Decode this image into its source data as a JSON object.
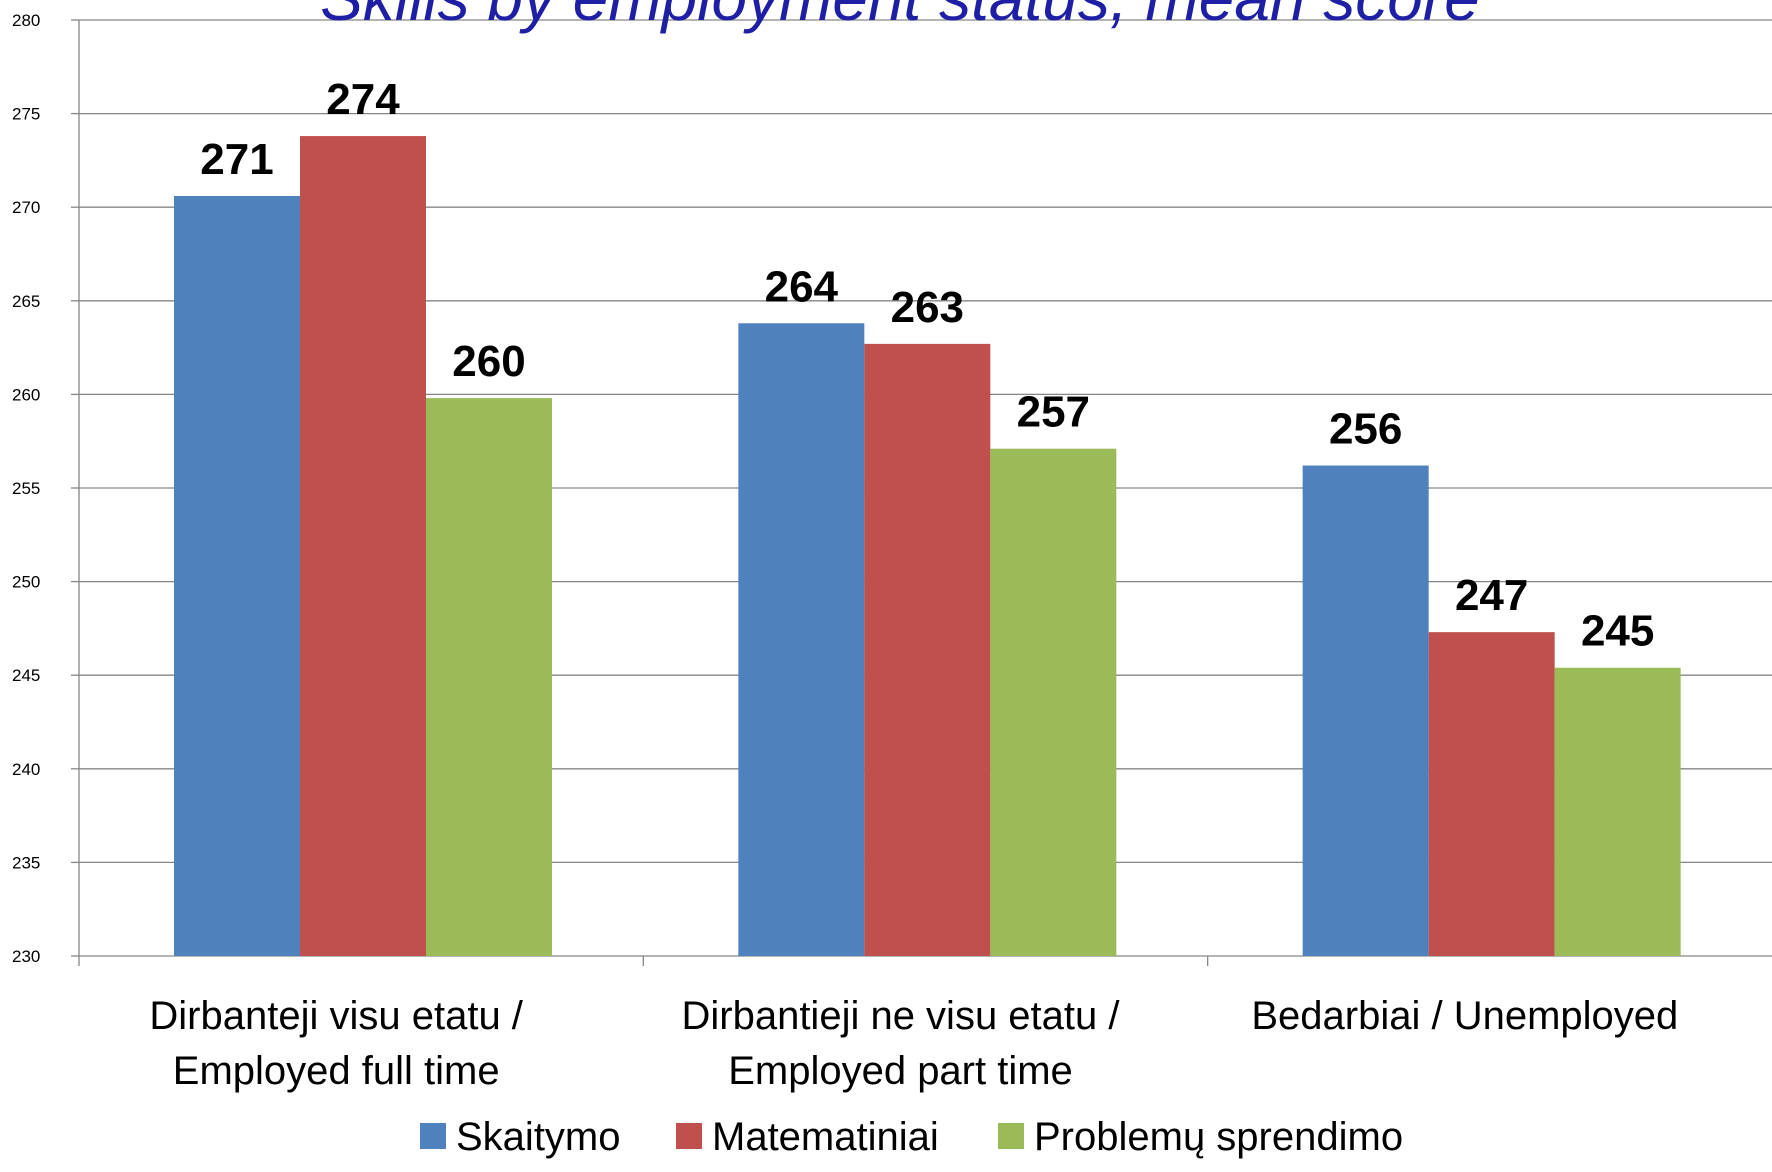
{
  "chart_data": {
    "type": "bar",
    "title": "Skills by employment status, mean score",
    "xlabel": "",
    "ylabel": "",
    "ylim": [
      230,
      280
    ],
    "yticks": [
      230,
      235,
      240,
      245,
      250,
      255,
      260,
      265,
      270,
      275,
      280
    ],
    "grid": true,
    "legend_position": "bottom",
    "categories": [
      [
        "Dirbanteji visu etatu /",
        "Employed full time"
      ],
      [
        "Dirbantieji ne visu etatu /",
        "Employed part time"
      ],
      [
        "Bedarbiai / Unemployed"
      ]
    ],
    "series": [
      {
        "name": "Skaitymo",
        "color": "#4f81bd",
        "values": [
          270.6,
          263.8,
          256.2
        ],
        "labels": [
          "271",
          "264",
          "256"
        ]
      },
      {
        "name": "Matematiniai",
        "color": "#c0504d",
        "values": [
          273.8,
          262.7,
          247.3
        ],
        "labels": [
          "274",
          "263",
          "247"
        ]
      },
      {
        "name": "Problemų sprendimo",
        "color": "#9bbb59",
        "values": [
          259.8,
          257.1,
          245.4
        ],
        "labels": [
          "260",
          "257",
          "245"
        ]
      }
    ]
  }
}
